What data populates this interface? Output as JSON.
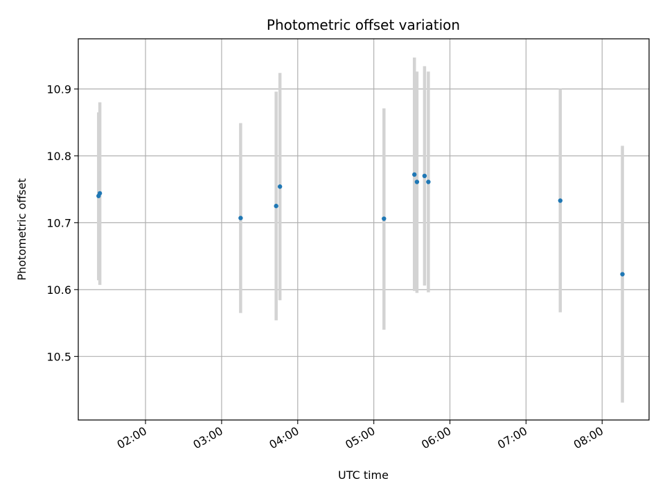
{
  "chart_data": {
    "type": "scatter",
    "title": "Photometric offset variation",
    "xlabel": "UTC time",
    "ylabel": "Photometric offset",
    "x_type": "time",
    "x_ticks": [
      "02:00",
      "03:00",
      "04:00",
      "05:00",
      "06:00",
      "07:00",
      "08:00"
    ],
    "xlim": [
      "01:07",
      "08:37"
    ],
    "y_ticks": [
      "10.5",
      "10.6",
      "10.7",
      "10.8",
      "10.9"
    ],
    "ylim": [
      10.405,
      10.975
    ],
    "grid": true,
    "colors": {
      "points": "#1f77b4",
      "errorbars": "#d3d3d3",
      "grid": "#b0b0b0"
    },
    "series": [
      {
        "points": [
          {
            "x": "01:23",
            "y": 10.74,
            "yerr_low": 10.614,
            "yerr_high": 10.865
          },
          {
            "x": "01:24",
            "y": 10.744,
            "yerr_low": 10.607,
            "yerr_high": 10.88
          },
          {
            "x": "03:15",
            "y": 10.707,
            "yerr_low": 10.565,
            "yerr_high": 10.849
          },
          {
            "x": "03:43",
            "y": 10.725,
            "yerr_low": 10.554,
            "yerr_high": 10.896
          },
          {
            "x": "03:46",
            "y": 10.754,
            "yerr_low": 10.584,
            "yerr_high": 10.924
          },
          {
            "x": "05:08",
            "y": 10.706,
            "yerr_low": 10.54,
            "yerr_high": 10.871
          },
          {
            "x": "05:32",
            "y": 10.772,
            "yerr_low": 10.598,
            "yerr_high": 10.947
          },
          {
            "x": "05:34",
            "y": 10.761,
            "yerr_low": 10.595,
            "yerr_high": 10.926
          },
          {
            "x": "05:40",
            "y": 10.77,
            "yerr_low": 10.606,
            "yerr_high": 10.934
          },
          {
            "x": "05:43",
            "y": 10.761,
            "yerr_low": 10.596,
            "yerr_high": 10.926
          },
          {
            "x": "07:27",
            "y": 10.733,
            "yerr_low": 10.566,
            "yerr_high": 10.9
          },
          {
            "x": "08:16",
            "y": 10.623,
            "yerr_low": 10.431,
            "yerr_high": 10.815
          }
        ]
      }
    ]
  }
}
